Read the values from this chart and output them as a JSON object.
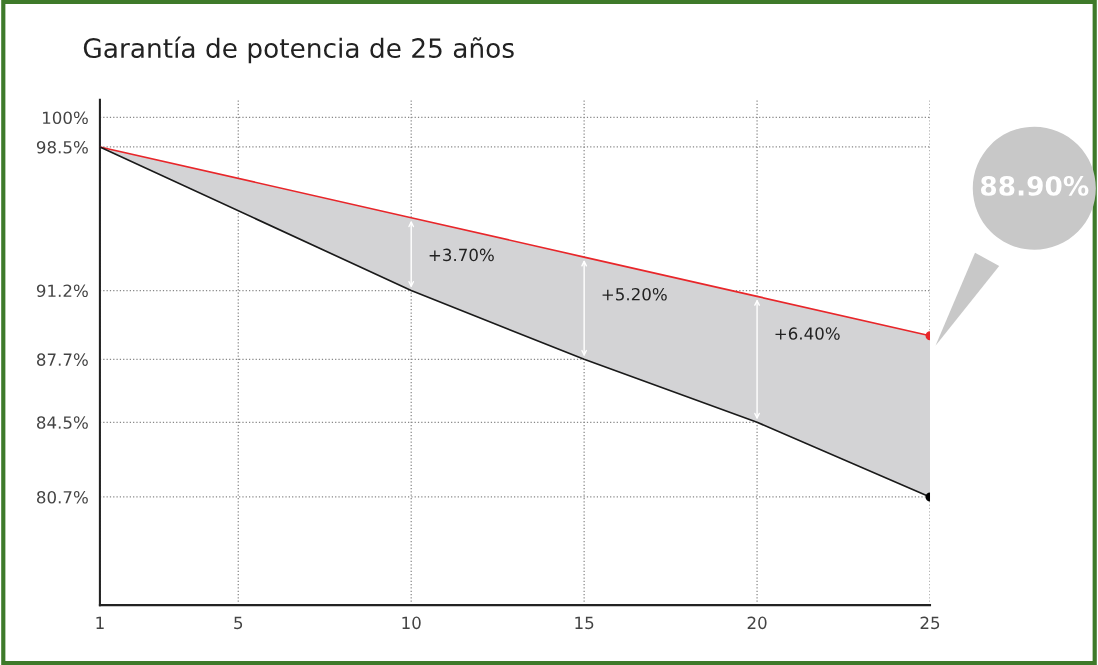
{
  "chart_data": {
    "type": "line",
    "title": "Garantía de potencia de 25 años",
    "xlim": [
      1,
      25
    ],
    "xticks": [
      1,
      5,
      10,
      15,
      20,
      25
    ],
    "ylim": [
      75.2,
      100.9
    ],
    "yticks": [
      {
        "value": 100,
        "label": "100%"
      },
      {
        "value": 98.5,
        "label": "98.5%"
      },
      {
        "value": 91.2,
        "label": "91.2%"
      },
      {
        "value": 87.7,
        "label": "87.7%"
      },
      {
        "value": 84.5,
        "label": "84.5%"
      },
      {
        "value": 80.7,
        "label": "80.7%"
      }
    ],
    "grid": true,
    "marker": "none",
    "series": [
      {
        "color": "#e8262a",
        "x": [
          1,
          10,
          15,
          20,
          25
        ],
        "values": [
          98.5,
          94.9,
          92.9,
          90.9,
          88.9
        ],
        "lower": [
          98.5,
          91.2,
          87.7,
          84.5,
          80.7
        ],
        "upper": [
          98.5,
          94.9,
          92.9,
          90.9,
          88.9
        ]
      },
      {
        "color": "#1a1a1a",
        "x": [
          1,
          10,
          15,
          20,
          25
        ],
        "values": [
          98.5,
          91.2,
          87.7,
          84.5,
          80.7
        ]
      },
      {
        "type": "scatter",
        "color": "#e8262a",
        "x": [
          25
        ],
        "values": [
          88.9
        ]
      },
      {
        "type": "scatter",
        "color": "#000000",
        "x": [
          25
        ],
        "values": [
          80.7
        ]
      }
    ],
    "annotations": [
      {
        "text": "+3.70%",
        "x": 10,
        "y": 94.9
      },
      {
        "text": "+5.20%",
        "x": 15,
        "y": 92.9
      },
      {
        "text": "+6.40%",
        "x": 20,
        "y": 90.9
      },
      "88.90%"
    ]
  }
}
